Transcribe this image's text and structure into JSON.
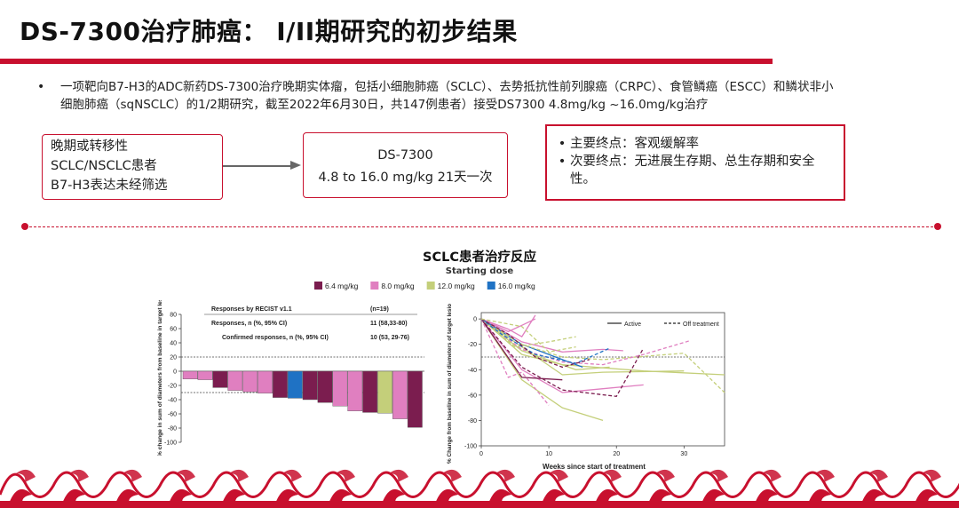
{
  "page": {
    "title": "DS-7300治疗肺癌： I/II期研究的初步结果",
    "bullet": "一项靶向B7-H3的ADC新药DS-7300治疗晚期实体瘤，包括小细胞肺癌（SCLC）、去势抵抗性前列腺癌（CRPC）、食管鳞癌（ESCC）和鳞状非小细胞肺癌（sqNSCLC）的1/2期研究，截至2022年6月30日，共147例患者）接受DS7300 4.8mg/kg ~16.0mg/kg治疗",
    "bullet_mark": "•",
    "box_left": [
      "晚期或转移性",
      "SCLC/NSCLC患者",
      "B7-H3表达未经筛选"
    ],
    "box_mid": [
      "DS-7300",
      "4.8  to 16.0 mg/kg 21天一次"
    ],
    "box_right": [
      "主要终点：客观缓解率",
      "次要终点：无进展生存期、总生存期和安全性。"
    ],
    "box_right_mark": "•"
  },
  "colors": {
    "accent": "#c8102e",
    "dose_6_4": "#7b1d4f",
    "dose_8_0": "#e07fc0",
    "dose_12_0": "#c4cf7a",
    "dose_16_0": "#1f72c4"
  },
  "chart_data": [
    {
      "type": "bar",
      "title": "SCLC患者治疗反应",
      "legend_title": "Starting dose",
      "legend": [
        {
          "name": "6.4 mg/kg",
          "color": "#7b1d4f"
        },
        {
          "name": "8.0 mg/kg",
          "color": "#e07fc0"
        },
        {
          "name": "12.0 mg/kg",
          "color": "#c4cf7a"
        },
        {
          "name": "16.0 mg/kg",
          "color": "#1f72c4"
        }
      ],
      "ylabel": "Best % change in sum of diameters from baseline in target lesions",
      "ylim": [
        -100,
        80
      ],
      "yticks": [
        80,
        60,
        40,
        20,
        0,
        -20,
        -40,
        -60,
        -80,
        -100
      ],
      "ref_lines": [
        20,
        -30
      ],
      "bars": [
        {
          "value": -11,
          "dose": "8.0 mg/kg"
        },
        {
          "value": -12,
          "dose": "8.0 mg/kg"
        },
        {
          "value": -23,
          "dose": "6.4 mg/kg"
        },
        {
          "value": -27,
          "dose": "8.0 mg/kg"
        },
        {
          "value": -29,
          "dose": "8.0 mg/kg"
        },
        {
          "value": -31,
          "dose": "8.0 mg/kg"
        },
        {
          "value": -37,
          "dose": "6.4 mg/kg"
        },
        {
          "value": -38,
          "dose": "16.0 mg/kg"
        },
        {
          "value": -40,
          "dose": "6.4 mg/kg"
        },
        {
          "value": -44,
          "dose": "6.4 mg/kg"
        },
        {
          "value": -49,
          "dose": "8.0 mg/kg"
        },
        {
          "value": -56,
          "dose": "8.0 mg/kg"
        },
        {
          "value": -58,
          "dose": "6.4 mg/kg"
        },
        {
          "value": -59,
          "dose": "12.0 mg/kg"
        },
        {
          "value": -67,
          "dose": "8.0 mg/kg"
        },
        {
          "value": -79,
          "dose": "6.4 mg/kg"
        }
      ],
      "table": {
        "header": [
          "Responses by RECIST v1.1",
          "(n=19)"
        ],
        "rows": [
          [
            "Responses, n (%, 95% CI)",
            "11 (58,33-80)"
          ],
          [
            "Confirmed responses, n (%, 95% CI)",
            "10 (53, 29-76)"
          ]
        ]
      }
    },
    {
      "type": "line",
      "xlabel": "Weeks since start of treatment",
      "ylabel": "% Change from baseline in sum of diameters of target lesionsᵃ",
      "xlim": [
        0,
        36
      ],
      "ylim": [
        -100,
        5
      ],
      "xticks": [
        0,
        10,
        20,
        30
      ],
      "yticks": [
        0,
        -20,
        -40,
        -60,
        -80,
        -100
      ],
      "ref_line": -30,
      "legend": [
        {
          "name": "Active",
          "style": "solid"
        },
        {
          "name": "Off treatment",
          "style": "dashed"
        }
      ],
      "series": [
        {
          "dose": "8.0 mg/kg",
          "dashed": false,
          "points": [
            [
              0,
              0
            ],
            [
              4,
              -8
            ],
            [
              6,
              -14
            ],
            [
              8,
              3
            ]
          ]
        },
        {
          "dose": "8.0 mg/kg",
          "dashed": false,
          "points": [
            [
              0,
              0
            ],
            [
              4,
              -10
            ],
            [
              6,
              -5
            ],
            [
              8,
              0
            ]
          ]
        },
        {
          "dose": "12.0 mg/kg",
          "dashed": false,
          "points": [
            [
              0,
              0
            ],
            [
              6,
              -48
            ],
            [
              12,
              -70
            ],
            [
              18,
              -80
            ]
          ]
        },
        {
          "dose": "12.0 mg/kg",
          "dashed": false,
          "points": [
            [
              0,
              0
            ],
            [
              6,
              -28
            ],
            [
              12,
              -36
            ],
            [
              24,
              -41
            ],
            [
              36,
              -44
            ]
          ]
        },
        {
          "dose": "12.0 mg/kg",
          "dashed": false,
          "points": [
            [
              0,
              0
            ],
            [
              6,
              -22
            ],
            [
              12,
              -44
            ],
            [
              18,
              -42
            ],
            [
              30,
              -41
            ]
          ]
        },
        {
          "dose": "12.0 mg/kg",
          "dashed": false,
          "points": [
            [
              0,
              0
            ],
            [
              6,
              -25
            ],
            [
              14,
              -40
            ],
            [
              19,
              -38
            ]
          ]
        },
        {
          "dose": "8.0 mg/kg",
          "dashed": false,
          "points": [
            [
              0,
              0
            ],
            [
              6,
              -40
            ],
            [
              12,
              -58
            ],
            [
              18,
              -55
            ],
            [
              24,
              -52
            ]
          ]
        },
        {
          "dose": "8.0 mg/kg",
          "dashed": false,
          "points": [
            [
              0,
              0
            ],
            [
              6,
              -18
            ],
            [
              12,
              -26
            ],
            [
              18,
              -24
            ],
            [
              21,
              -25
            ]
          ]
        },
        {
          "dose": "6.4 mg/kg",
          "dashed": false,
          "points": [
            [
              0,
              0
            ],
            [
              6,
              -46
            ],
            [
              12,
              -48
            ]
          ]
        },
        {
          "dose": "16.0 mg/kg",
          "dashed": false,
          "points": [
            [
              0,
              0
            ],
            [
              6,
              -20
            ],
            [
              12,
              -32
            ],
            [
              15,
              -38
            ]
          ]
        },
        {
          "dose": "8.0 mg/kg",
          "dashed": true,
          "points": [
            [
              0,
              0
            ],
            [
              4,
              -46
            ],
            [
              6,
              -42
            ],
            [
              10,
              -68
            ]
          ]
        },
        {
          "dose": "6.4 mg/kg",
          "dashed": true,
          "points": [
            [
              0,
              0
            ],
            [
              6,
              -38
            ],
            [
              12,
              -56
            ],
            [
              20,
              -61
            ],
            [
              24,
              -23
            ]
          ]
        },
        {
          "dose": "12.0 mg/kg",
          "dashed": true,
          "points": [
            [
              0,
              0
            ],
            [
              6,
              -20
            ],
            [
              12,
              -30
            ],
            [
              18,
              -32
            ],
            [
              30,
              -27
            ],
            [
              36,
              -58
            ]
          ]
        },
        {
          "dose": "8.0 mg/kg",
          "dashed": true,
          "points": [
            [
              0,
              0
            ],
            [
              6,
              -24
            ],
            [
              12,
              -34
            ],
            [
              18,
              -36
            ],
            [
              24,
              -28
            ],
            [
              31,
              -17
            ]
          ]
        },
        {
          "dose": "12.0 mg/kg",
          "dashed": true,
          "points": [
            [
              0,
              0
            ],
            [
              5,
              -22
            ],
            [
              10,
              -18
            ],
            [
              14,
              -14
            ]
          ]
        },
        {
          "dose": "16.0 mg/kg",
          "dashed": true,
          "points": [
            [
              0,
              0
            ],
            [
              3,
              -12
            ],
            [
              8,
              -28
            ],
            [
              14,
              -35
            ],
            [
              19,
              -23
            ]
          ]
        },
        {
          "dose": "6.4 mg/kg",
          "dashed": true,
          "points": [
            [
              0,
              0
            ],
            [
              4,
              -12
            ],
            [
              8,
              -30
            ],
            [
              12,
              -38
            ],
            [
              16,
              -32
            ]
          ]
        },
        {
          "dose": "12.0 mg/kg",
          "dashed": true,
          "points": [
            [
              0,
              0
            ],
            [
              6,
              -6
            ],
            [
              10,
              -26
            ],
            [
              14,
              -22
            ]
          ]
        }
      ]
    }
  ]
}
